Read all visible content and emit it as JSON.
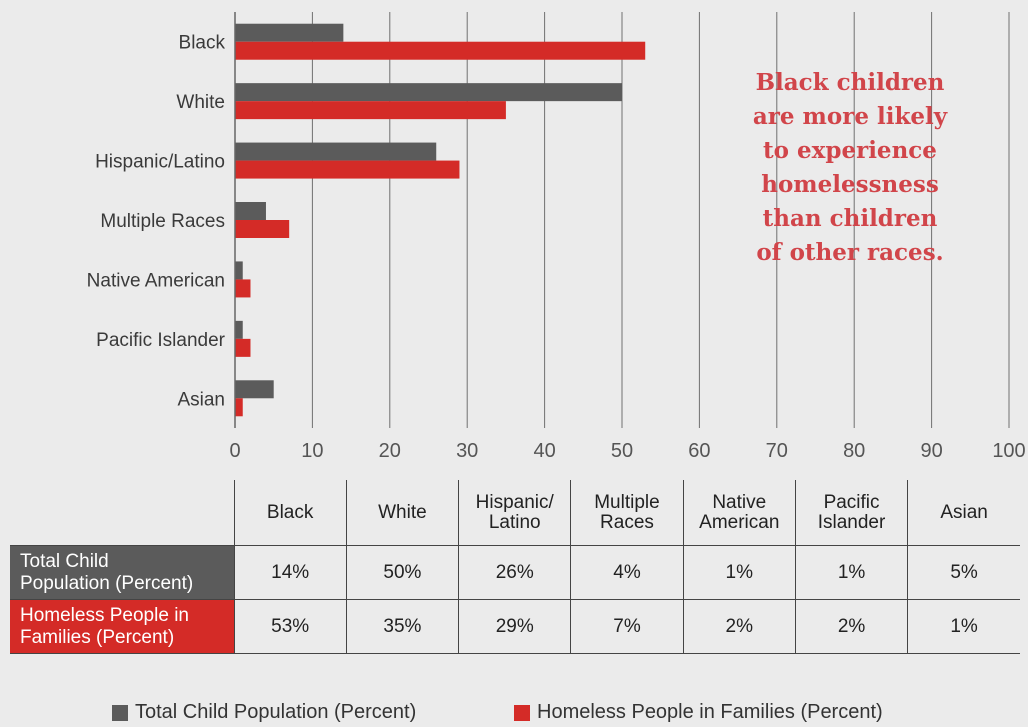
{
  "chart_data": {
    "type": "bar",
    "orientation": "horizontal",
    "categories": [
      "Black",
      "White",
      "Hispanic/Latino",
      "Multiple Races",
      "Native American",
      "Pacific Islander",
      "Asian"
    ],
    "series": [
      {
        "name": "Total Child Population (Percent)",
        "color": "#5b5b5b",
        "values": [
          14,
          50,
          26,
          4,
          1,
          1,
          5
        ]
      },
      {
        "name": "Homeless People in Families (Percent)",
        "color": "#d42b27",
        "values": [
          53,
          35,
          29,
          7,
          2,
          2,
          1
        ]
      }
    ],
    "xlim": [
      0,
      100
    ],
    "xticks": [
      0,
      10,
      20,
      30,
      40,
      50,
      60,
      70,
      80,
      90,
      100
    ],
    "grid": "vertical",
    "legend_position": "bottom",
    "annotation": [
      "Black children",
      "are more likely",
      "to experience",
      "homelessness",
      "than children",
      "of other races."
    ]
  },
  "table": {
    "headers": [
      [
        "Black"
      ],
      [
        "White"
      ],
      [
        "Hispanic/",
        "Latino"
      ],
      [
        "Multiple",
        "Races"
      ],
      [
        "Native",
        "American"
      ],
      [
        "Pacific",
        "Islander"
      ],
      [
        "Asian"
      ]
    ],
    "rows": [
      {
        "label": [
          "Total Child",
          "Population (Percent)"
        ],
        "values": [
          "14%",
          "50%",
          "26%",
          "4%",
          "1%",
          "1%",
          "5%"
        ]
      },
      {
        "label": [
          "Homeless People in",
          "Families (Percent)"
        ],
        "values": [
          "53%",
          "35%",
          "29%",
          "7%",
          "2%",
          "2%",
          "1%"
        ]
      }
    ]
  },
  "legend": {
    "total": "Total Child Population (Percent)",
    "homeless": "Homeless People in Families (Percent)"
  }
}
